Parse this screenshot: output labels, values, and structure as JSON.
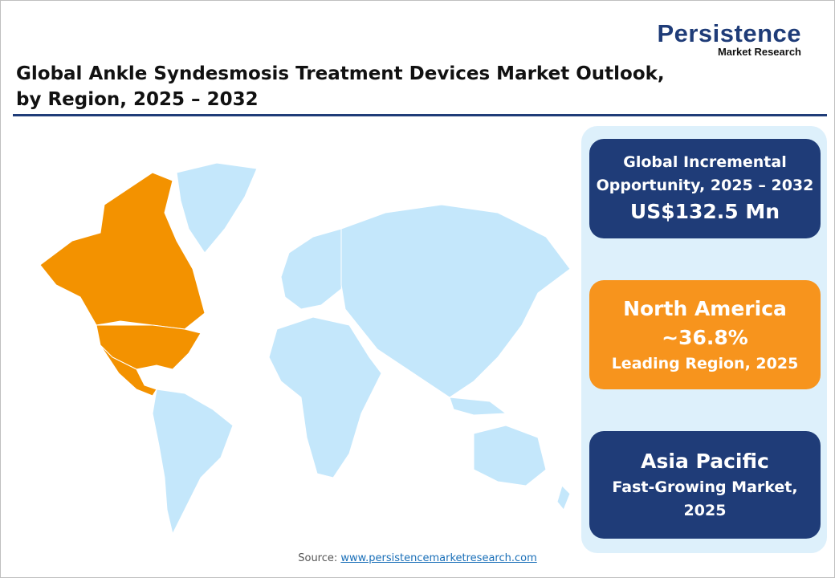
{
  "header": {
    "title_line1": "Global Ankle Syndesmosis Treatment Devices Market Outlook,",
    "title_line2": "by Region, 2025 – 2032"
  },
  "logo": {
    "line1": "Persistence",
    "line2": "Market Research"
  },
  "map": {
    "highlight_region": "North America",
    "colors": {
      "highlight": "#f39200",
      "other": "#c4e7fb"
    }
  },
  "panel": {
    "opportunity": {
      "line1": "Global Incremental",
      "line2": "Opportunity, 2025 – 2032",
      "value": "US$132.5 Mn"
    },
    "leading": {
      "region": "North America",
      "share": "~36.8%",
      "label": "Leading Region, 2025"
    },
    "fastest": {
      "region": "Asia Pacific",
      "label_line1": "Fast-Growing Market,",
      "label_line2": "2025"
    }
  },
  "footer": {
    "source_label": "Source:",
    "source_link": "www.persistencemarketresearch.com"
  },
  "colors": {
    "navy": "#1f3c78",
    "orange": "#f7941d",
    "panel_bg": "#ddf0fb"
  }
}
